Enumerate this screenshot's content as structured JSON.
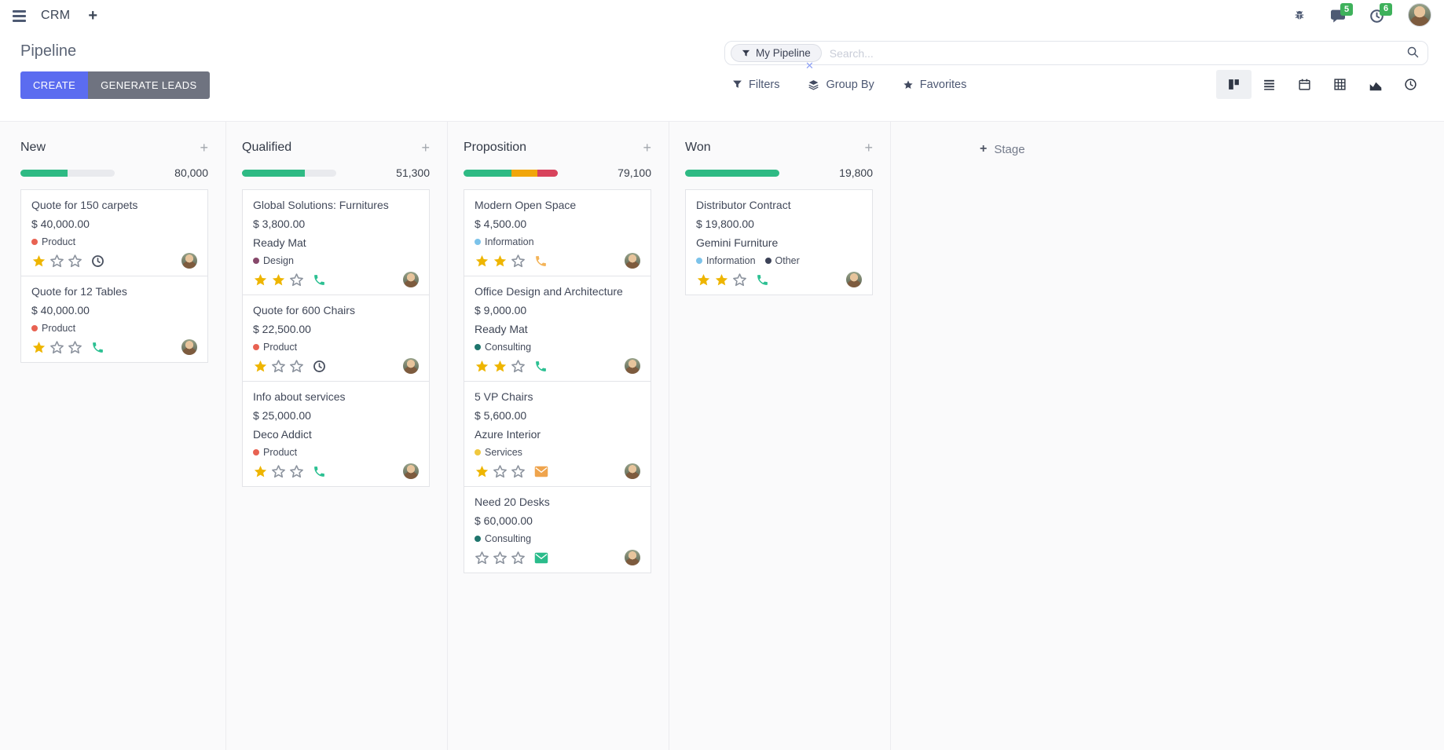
{
  "navbar": {
    "app_name": "CRM",
    "chat_badge": "5",
    "activity_badge": "6"
  },
  "control_panel": {
    "title": "Pipeline",
    "create_button": "CREATE",
    "generate_leads_button": "GENERATE LEADS",
    "search": {
      "facet": "My Pipeline",
      "placeholder": "Search..."
    },
    "filters": "Filters",
    "group_by": "Group By",
    "favorites": "Favorites"
  },
  "view_switcher": [
    "kanban",
    "list",
    "calendar",
    "pivot",
    "graph",
    "activity"
  ],
  "add_stage_label": "Stage",
  "colors": {
    "accent": "#5b6cf0",
    "secondary_button": "#6f7380",
    "badge_green": "#3eb15b",
    "star_gold": "#eeb500",
    "progress_green": "#2eba84",
    "progress_orange": "#f1a60b",
    "progress_red": "#d8435c"
  },
  "columns": [
    {
      "title": "New",
      "total": "80,000",
      "progress": [
        {
          "color": "#2eba84",
          "percent": 50
        }
      ],
      "cards": [
        {
          "title": "Quote for 150 carpets",
          "amount": "$ 40,000.00",
          "tags": [
            {
              "label": "Product",
              "color": "#e86252"
            }
          ],
          "stars": 1,
          "activity": {
            "icon": "clock",
            "color": "#4a5160"
          }
        },
        {
          "title": "Quote for 12 Tables",
          "amount": "$ 40,000.00",
          "tags": [
            {
              "label": "Product",
              "color": "#e86252"
            }
          ],
          "stars": 1,
          "activity": {
            "icon": "phone",
            "color": "#2cc092"
          }
        }
      ]
    },
    {
      "title": "Qualified",
      "total": "51,300",
      "progress": [
        {
          "color": "#2eba84",
          "percent": 67
        }
      ],
      "cards": [
        {
          "title": "Global Solutions: Furnitures",
          "amount": "$ 3,800.00",
          "partner": "Ready Mat",
          "tags": [
            {
              "label": "Design",
              "color": "#87496b"
            }
          ],
          "stars": 2,
          "activity": {
            "icon": "phone",
            "color": "#2cc092"
          }
        },
        {
          "title": "Quote for 600 Chairs",
          "amount": "$ 22,500.00",
          "tags": [
            {
              "label": "Product",
              "color": "#e86252"
            }
          ],
          "stars": 1,
          "activity": {
            "icon": "clock",
            "color": "#4a5160"
          }
        },
        {
          "title": "Info about services",
          "amount": "$ 25,000.00",
          "partner": "Deco Addict",
          "tags": [
            {
              "label": "Product",
              "color": "#e86252"
            }
          ],
          "stars": 1,
          "activity": {
            "icon": "phone",
            "color": "#2cc092"
          }
        }
      ]
    },
    {
      "title": "Proposition",
      "total": "79,100",
      "progress": [
        {
          "color": "#2eba84",
          "percent": 51
        },
        {
          "color": "#f1a60b",
          "percent": 27
        },
        {
          "color": "#d8435c",
          "percent": 22
        }
      ],
      "cards": [
        {
          "title": "Modern Open Space",
          "amount": "$ 4,500.00",
          "tags": [
            {
              "label": "Information",
              "color": "#7cc3ea"
            }
          ],
          "stars": 2,
          "activity": {
            "icon": "phone",
            "color": "#f4b459"
          }
        },
        {
          "title": "Office Design and Architecture",
          "amount": "$ 9,000.00",
          "partner": "Ready Mat",
          "tags": [
            {
              "label": "Consulting",
              "color": "#1f756d"
            }
          ],
          "stars": 2,
          "activity": {
            "icon": "phone",
            "color": "#2cc092"
          }
        },
        {
          "title": "5 VP Chairs",
          "amount": "$ 5,600.00",
          "partner": "Azure Interior",
          "tags": [
            {
              "label": "Services",
              "color": "#f0c83e"
            }
          ],
          "stars": 1,
          "activity": {
            "icon": "envelope",
            "color": "#efa44d"
          }
        },
        {
          "title": "Need 20 Desks",
          "amount": "$ 60,000.00",
          "tags": [
            {
              "label": "Consulting",
              "color": "#1f756d"
            }
          ],
          "stars": 0,
          "activity": {
            "icon": "envelope",
            "color": "#2bbc8b"
          }
        }
      ]
    },
    {
      "title": "Won",
      "total": "19,800",
      "progress": [
        {
          "color": "#2eba84",
          "percent": 100
        }
      ],
      "cards": [
        {
          "title": "Distributor Contract",
          "amount": "$ 19,800.00",
          "partner": "Gemini Furniture",
          "tags": [
            {
              "label": "Information",
              "color": "#7cc3ea"
            },
            {
              "label": "Other",
              "color": "#3c4257"
            }
          ],
          "stars": 2,
          "activity": {
            "icon": "phone",
            "color": "#2cc092"
          }
        }
      ]
    }
  ]
}
